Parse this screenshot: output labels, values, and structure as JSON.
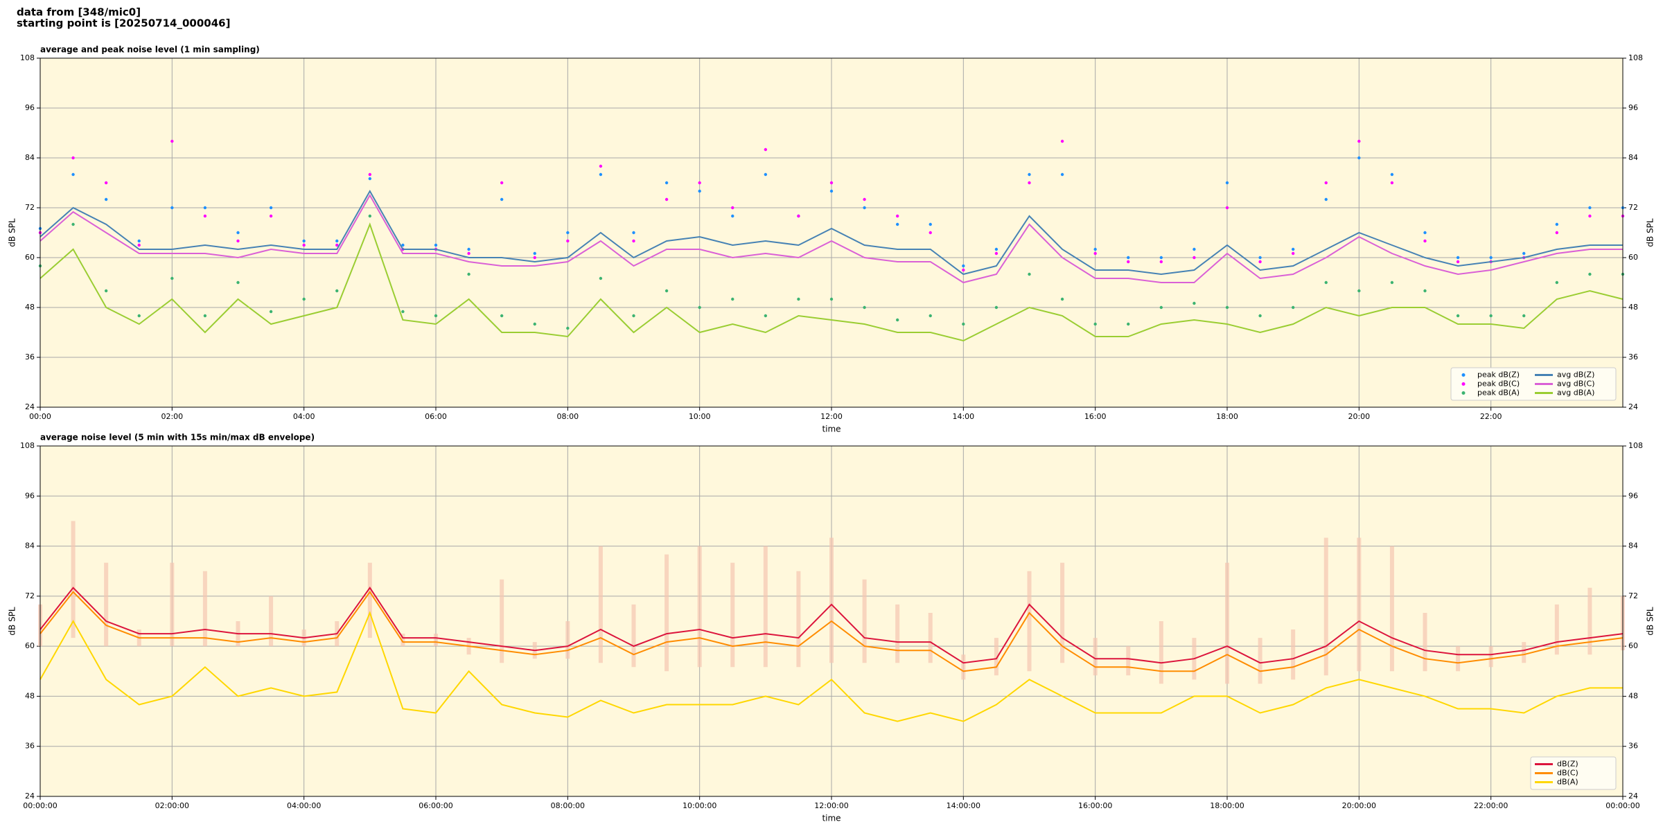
{
  "header": {
    "lines": [
      "data from [348/mic0]",
      "starting point is [20250714_000046]"
    ]
  },
  "chart_data": [
    {
      "type": "line",
      "title": "average and peak noise level (1 min sampling)",
      "x_label": "time",
      "y_label": "dB SPL",
      "x": [
        0,
        0.5,
        1,
        1.5,
        2,
        2.5,
        3,
        3.5,
        4,
        4.5,
        5,
        5.5,
        6,
        6.5,
        7,
        7.5,
        8,
        8.5,
        9,
        9.5,
        10,
        10.5,
        11,
        11.5,
        12,
        12.5,
        13,
        13.5,
        14,
        14.5,
        15,
        15.5,
        16,
        16.5,
        17,
        17.5,
        18,
        18.5,
        19,
        19.5,
        20,
        20.5,
        21,
        21.5,
        22,
        22.5,
        23,
        23.5,
        24
      ],
      "xlim": [
        0,
        24
      ],
      "xticks": [
        {
          "value": 0,
          "label": "00:00"
        },
        {
          "value": 2,
          "label": "02:00"
        },
        {
          "value": 4,
          "label": "04:00"
        },
        {
          "value": 6,
          "label": "06:00"
        },
        {
          "value": 8,
          "label": "08:00"
        },
        {
          "value": 10,
          "label": "10:00"
        },
        {
          "value": 12,
          "label": "12:00"
        },
        {
          "value": 14,
          "label": "14:00"
        },
        {
          "value": 16,
          "label": "16:00"
        },
        {
          "value": 18,
          "label": "18:00"
        },
        {
          "value": 20,
          "label": "20:00"
        },
        {
          "value": 22,
          "label": "22:00"
        }
      ],
      "ylim": [
        24,
        108
      ],
      "yticks": [
        24,
        36,
        48,
        60,
        72,
        84,
        96,
        108
      ],
      "grid": true,
      "legend": "lower right",
      "legend_columns": 2,
      "background": "#fff8dc",
      "series": [
        {
          "name": "peak dB(Z)",
          "mark": "dot",
          "color": "#1e90ff",
          "values": [
            67,
            80,
            74,
            64,
            72,
            72,
            66,
            72,
            64,
            64,
            79,
            63,
            63,
            62,
            74,
            61,
            66,
            80,
            66,
            78,
            76,
            70,
            80,
            70,
            76,
            72,
            68,
            68,
            58,
            62,
            80,
            80,
            62,
            60,
            60,
            62,
            78,
            60,
            62,
            74,
            84,
            80,
            66,
            60,
            60,
            61,
            68,
            72,
            72
          ]
        },
        {
          "name": "peak dB(C)",
          "mark": "dot",
          "color": "#ff00ff",
          "values": [
            66,
            84,
            78,
            63,
            88,
            70,
            64,
            70,
            63,
            63,
            80,
            62,
            62,
            61,
            78,
            60,
            64,
            82,
            64,
            74,
            78,
            72,
            86,
            70,
            78,
            74,
            70,
            66,
            57,
            61,
            78,
            88,
            61,
            59,
            59,
            60,
            72,
            59,
            61,
            78,
            88,
            78,
            64,
            59,
            59,
            60,
            66,
            70,
            70
          ]
        },
        {
          "name": "peak dB(A)",
          "mark": "dot",
          "color": "#3cb371",
          "values": [
            58,
            68,
            52,
            46,
            55,
            46,
            54,
            47,
            50,
            52,
            70,
            47,
            46,
            56,
            46,
            44,
            43,
            55,
            46,
            52,
            48,
            50,
            46,
            50,
            50,
            48,
            45,
            46,
            44,
            48,
            56,
            50,
            44,
            44,
            48,
            49,
            48,
            46,
            48,
            54,
            52,
            54,
            52,
            46,
            46,
            46,
            54,
            56,
            56
          ]
        },
        {
          "name": "avg dB(Z)",
          "mark": "line",
          "color": "#4682b4",
          "values": [
            65,
            72,
            68,
            62,
            62,
            63,
            62,
            63,
            62,
            62,
            76,
            62,
            62,
            60,
            60,
            59,
            60,
            66,
            60,
            64,
            65,
            63,
            64,
            63,
            67,
            63,
            62,
            62,
            56,
            58,
            70,
            62,
            57,
            57,
            56,
            57,
            63,
            57,
            58,
            62,
            66,
            63,
            60,
            58,
            59,
            60,
            62,
            63,
            63
          ]
        },
        {
          "name": "avg dB(C)",
          "mark": "line",
          "color": "#da60d6",
          "values": [
            64,
            71,
            66,
            61,
            61,
            61,
            60,
            62,
            61,
            61,
            75,
            61,
            61,
            59,
            58,
            58,
            59,
            64,
            58,
            62,
            62,
            60,
            61,
            60,
            64,
            60,
            59,
            59,
            54,
            56,
            68,
            60,
            55,
            55,
            54,
            54,
            61,
            55,
            56,
            60,
            65,
            61,
            58,
            56,
            57,
            59,
            61,
            62,
            62
          ]
        },
        {
          "name": "avg dB(A)",
          "mark": "line",
          "color": "#9acd32",
          "values": [
            55,
            62,
            48,
            44,
            50,
            42,
            50,
            44,
            46,
            48,
            68,
            45,
            44,
            50,
            42,
            42,
            41,
            50,
            42,
            48,
            42,
            44,
            42,
            46,
            45,
            44,
            42,
            42,
            40,
            44,
            48,
            46,
            41,
            41,
            44,
            45,
            44,
            42,
            44,
            48,
            46,
            48,
            48,
            44,
            44,
            43,
            50,
            52,
            50
          ]
        }
      ]
    },
    {
      "type": "line",
      "title": "average noise level (5 min with 15s min/max dB envelope)",
      "x_label": "time",
      "y_label": "dB SPL",
      "x": [
        0,
        0.5,
        1,
        1.5,
        2,
        2.5,
        3,
        3.5,
        4,
        4.5,
        5,
        5.5,
        6,
        6.5,
        7,
        7.5,
        8,
        8.5,
        9,
        9.5,
        10,
        10.5,
        11,
        11.5,
        12,
        12.5,
        13,
        13.5,
        14,
        14.5,
        15,
        15.5,
        16,
        16.5,
        17,
        17.5,
        18,
        18.5,
        19,
        19.5,
        20,
        20.5,
        21,
        21.5,
        22,
        22.5,
        23,
        23.5,
        24
      ],
      "xlim": [
        0,
        24
      ],
      "xticks": [
        {
          "value": 0,
          "label": "00:00:00"
        },
        {
          "value": 2,
          "label": "02:00:00"
        },
        {
          "value": 4,
          "label": "04:00:00"
        },
        {
          "value": 6,
          "label": "06:00:00"
        },
        {
          "value": 8,
          "label": "08:00:00"
        },
        {
          "value": 10,
          "label": "10:00:00"
        },
        {
          "value": 12,
          "label": "12:00:00"
        },
        {
          "value": 14,
          "label": "14:00:00"
        },
        {
          "value": 16,
          "label": "16:00:00"
        },
        {
          "value": 18,
          "label": "18:00:00"
        },
        {
          "value": 20,
          "label": "20:00:00"
        },
        {
          "value": 22,
          "label": "22:00:00"
        },
        {
          "value": 24,
          "label": "00:00:00"
        }
      ],
      "ylim": [
        24,
        108
      ],
      "yticks": [
        24,
        36,
        48,
        60,
        72,
        84,
        96,
        108
      ],
      "grid": true,
      "legend": "lower right",
      "legend_columns": 1,
      "background": "#fff8dc",
      "envelope": {
        "color": "#f5c6b0",
        "low": [
          60,
          62,
          60,
          60,
          60,
          60,
          60,
          60,
          60,
          60,
          62,
          60,
          60,
          58,
          56,
          57,
          57,
          56,
          55,
          54,
          55,
          55,
          55,
          55,
          56,
          56,
          56,
          56,
          52,
          53,
          54,
          56,
          53,
          53,
          51,
          52,
          51,
          51,
          52,
          53,
          54,
          54,
          54,
          54,
          55,
          56,
          58,
          58,
          59
        ],
        "high": [
          70,
          90,
          80,
          64,
          80,
          78,
          66,
          72,
          64,
          66,
          80,
          63,
          63,
          62,
          76,
          61,
          66,
          84,
          70,
          82,
          84,
          80,
          84,
          78,
          86,
          76,
          70,
          68,
          58,
          62,
          78,
          80,
          62,
          60,
          66,
          62,
          80,
          62,
          64,
          86,
          86,
          84,
          68,
          60,
          60,
          61,
          70,
          74,
          72
        ]
      },
      "series": [
        {
          "name": "dB(Z)",
          "mark": "line",
          "color": "#dc143c",
          "values": [
            64,
            74,
            66,
            63,
            63,
            64,
            63,
            63,
            62,
            63,
            74,
            62,
            62,
            61,
            60,
            59,
            60,
            64,
            60,
            63,
            64,
            62,
            63,
            62,
            70,
            62,
            61,
            61,
            56,
            57,
            70,
            62,
            57,
            57,
            56,
            57,
            60,
            56,
            57,
            60,
            66,
            62,
            59,
            58,
            58,
            59,
            61,
            62,
            63
          ]
        },
        {
          "name": "dB(C)",
          "mark": "line",
          "color": "#ff8c00",
          "values": [
            63,
            73,
            65,
            62,
            62,
            62,
            61,
            62,
            61,
            62,
            73,
            61,
            61,
            60,
            59,
            58,
            59,
            62,
            58,
            61,
            62,
            60,
            61,
            60,
            66,
            60,
            59,
            59,
            54,
            55,
            68,
            60,
            55,
            55,
            54,
            54,
            58,
            54,
            55,
            58,
            64,
            60,
            57,
            56,
            57,
            58,
            60,
            61,
            62
          ]
        },
        {
          "name": "dB(A)",
          "mark": "line",
          "color": "#ffd700",
          "values": [
            52,
            66,
            52,
            46,
            48,
            55,
            48,
            50,
            48,
            49,
            68,
            45,
            44,
            54,
            46,
            44,
            43,
            47,
            44,
            46,
            46,
            46,
            48,
            46,
            52,
            44,
            42,
            44,
            42,
            46,
            52,
            48,
            44,
            44,
            44,
            48,
            48,
            44,
            46,
            50,
            52,
            50,
            48,
            45,
            45,
            44,
            48,
            50,
            50
          ]
        }
      ]
    }
  ]
}
